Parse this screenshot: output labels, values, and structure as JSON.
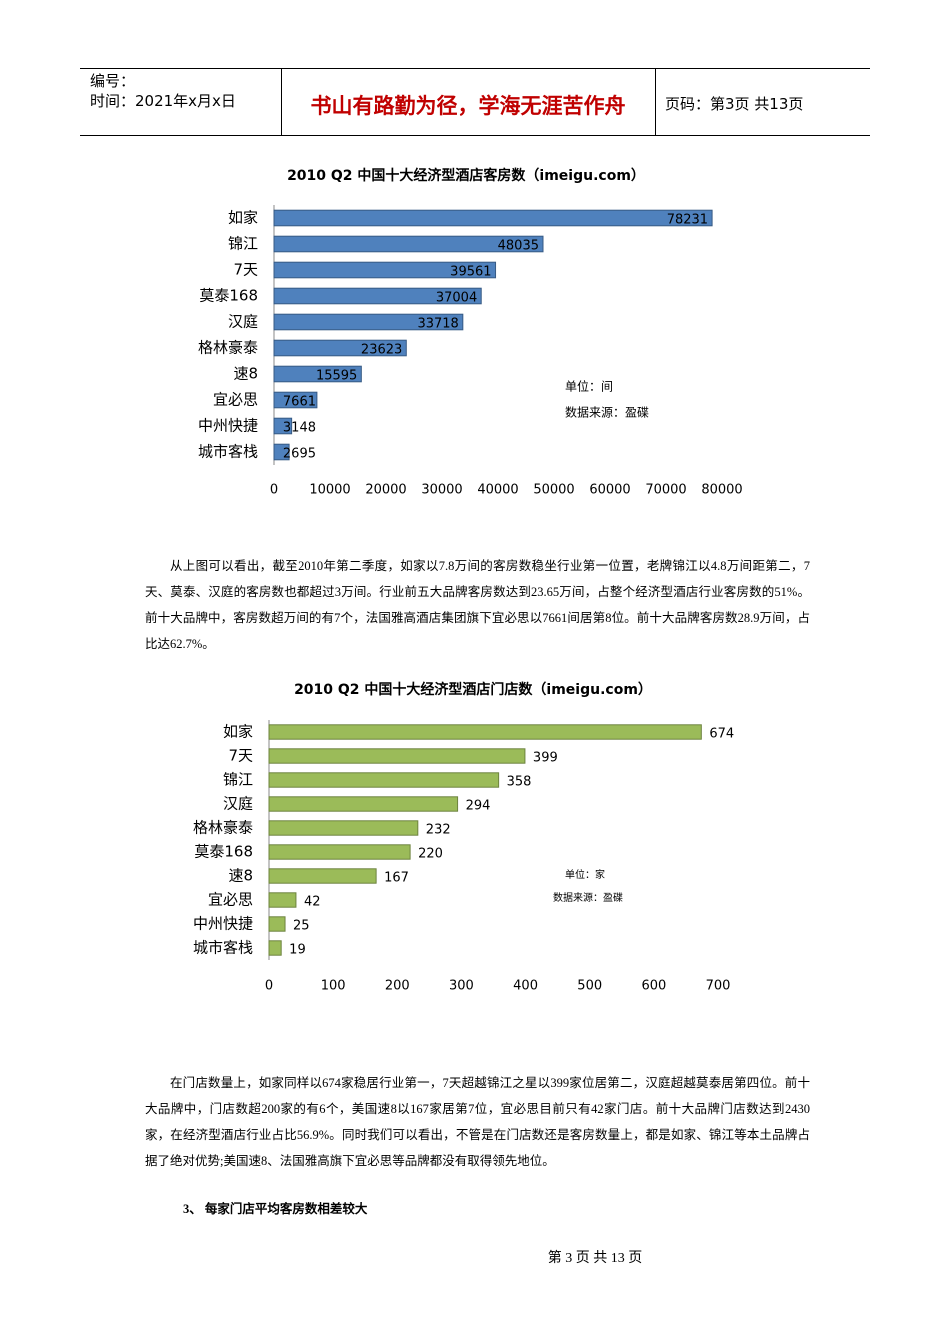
{
  "header": {
    "number": "编号：",
    "time": "时间：2021年x月x日",
    "motto": "书山有路勤为径，学海无涯苦作舟",
    "page": "页码：第3页 共13页"
  },
  "chart_data": [
    {
      "type": "bar",
      "orientation": "horizontal",
      "title": "2010 Q2 中国十大经济型酒店客房数（imeigu.com）",
      "categories": [
        "如家",
        "锦江",
        "7天",
        "莫泰168",
        "汉庭",
        "格林豪泰",
        "速8",
        "宜必思",
        "中州快捷",
        "城市客栈"
      ],
      "values": [
        78231,
        48035,
        39561,
        37004,
        33718,
        23623,
        15595,
        7661,
        3148,
        2695
      ],
      "color": "#4f81bd",
      "label_position": "inside",
      "xlim": [
        0,
        80000
      ],
      "xticks": [
        0,
        10000,
        20000,
        30000,
        40000,
        50000,
        60000,
        70000,
        80000
      ],
      "annotations": [
        "单位：间",
        "数据来源：盈碟"
      ]
    },
    {
      "type": "bar",
      "orientation": "horizontal",
      "title": "2010 Q2 中国十大经济型酒店门店数（imeigu.com）",
      "categories": [
        "如家",
        "7天",
        "锦江",
        "汉庭",
        "格林豪泰",
        "莫泰168",
        "速8",
        "宜必思",
        "中州快捷",
        "城市客栈"
      ],
      "values": [
        674,
        399,
        358,
        294,
        232,
        220,
        167,
        42,
        25,
        19
      ],
      "color": "#9bbb59",
      "label_position": "outside",
      "xlim": [
        0,
        700
      ],
      "xticks": [
        0,
        100,
        200,
        300,
        400,
        500,
        600,
        700
      ],
      "annotations": [
        "单位：家",
        "数据来源：盈碟"
      ]
    }
  ],
  "paragraphs": [
    "从上图可以看出，截至2010年第二季度，如家以7.8万间的客房数稳坐行业第一位置，老牌锦江以4.8万间距第二，7天、莫泰、汉庭的客房数也都超过3万间。行业前五大品牌客房数达到23.65万间，占整个经济型酒店行业客房数的51%。前十大品牌中，客房数超万间的有7个，法国雅高酒店集团旗下宜必思以7661间居第8位。前十大品牌客房数28.9万间，占比达62.7%。",
    "在门店数量上，如家同样以674家稳居行业第一，7天超越锦江之星以399家位居第二，汉庭超越莫泰居第四位。前十大品牌中，门店数超200家的有6个，美国速8以167家居第7位，宜必思目前只有42家门店。前十大品牌门店数达到2430家，在经济型酒店行业占比56.9%。同时我们可以看出，不管是在门店数还是客房数量上，都是如家、锦江等本土品牌占据了绝对优势;美国速8、法国雅高旗下宜必思等品牌都没有取得领先地位。"
  ],
  "section_heading": "3、 每家门店平均客房数相差较大",
  "footer": "第 3 页 共 13 页"
}
